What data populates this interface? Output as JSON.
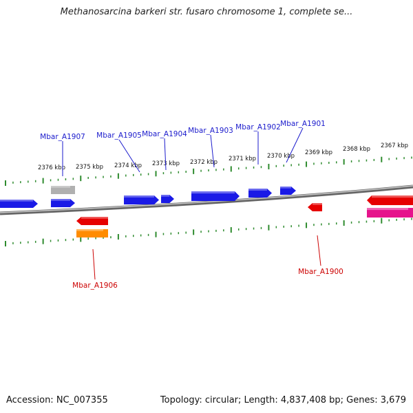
{
  "title": "Methanosarcina barkeri str. fusaro chromosome 1, complete se...",
  "footer": {
    "accession": "Accession: NC_007355",
    "summary": "Topology: circular; Length: 4,837,408 bp; Genes: 3,679"
  },
  "colors": {
    "forward_gene": "#1a1ae6",
    "reverse_gene": "#e60000",
    "reverse_gene_pink": "#e6148c",
    "reverse_gene_orange": "#ff8c00",
    "other_feature": "#b0b0b0",
    "tick": "#2e8b2e",
    "backbone": "#888888",
    "label_forward": "#1a1acc",
    "label_reverse": "#cc0000"
  },
  "kbp_ticks": [
    "2376 kbp",
    "2375 kbp",
    "2374 kbp",
    "2373 kbp",
    "2372 kbp",
    "2371 kbp",
    "2370 kbp",
    "2369 kbp",
    "2368 kbp",
    "2367 kbp"
  ],
  "gene_labels": [
    {
      "id": "Mbar_A1907",
      "label": "Mbar_A1907",
      "strand": "forward"
    },
    {
      "id": "Mbar_A1905",
      "label": "Mbar_A1905",
      "strand": "forward"
    },
    {
      "id": "Mbar_A1904",
      "label": "Mbar_A1904",
      "strand": "forward"
    },
    {
      "id": "Mbar_A1903",
      "label": "Mbar_A1903",
      "strand": "forward"
    },
    {
      "id": "Mbar_A1902",
      "label": "Mbar_A1902",
      "strand": "forward"
    },
    {
      "id": "Mbar_A1901",
      "label": "Mbar_A1901",
      "strand": "forward"
    },
    {
      "id": "Mbar_A1906",
      "label": "Mbar_A1906",
      "strand": "reverse"
    },
    {
      "id": "Mbar_A1900",
      "label": "Mbar_A1900",
      "strand": "reverse"
    }
  ]
}
